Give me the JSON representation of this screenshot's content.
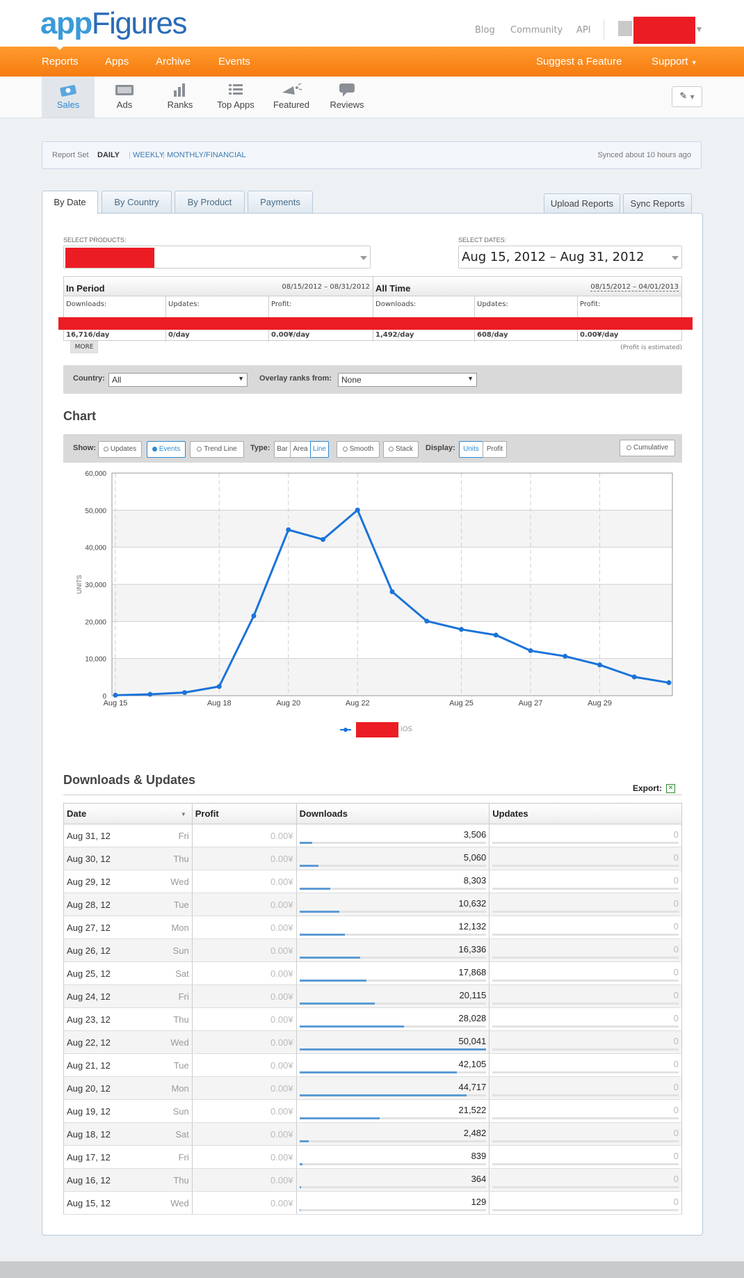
{
  "brand": {
    "logo_part1": "app",
    "logo_part2": "Figures"
  },
  "top_links": {
    "blog": "Blog",
    "community": "Community",
    "api": "API"
  },
  "main_nav": {
    "reports": "Reports",
    "apps": "Apps",
    "archive": "Archive",
    "events": "Events",
    "suggest": "Suggest a Feature",
    "support": "Support"
  },
  "sub_nav": {
    "sales": "Sales",
    "ads": "Ads",
    "ranks": "Ranks",
    "top_apps": "Top Apps",
    "featured": "Featured",
    "reviews": "Reviews"
  },
  "report_set": {
    "label": "Report Set",
    "daily": "DAILY",
    "weekly": "WEEKLY",
    "monthly": "MONTHLY/FINANCIAL",
    "synced": "Synced about 10 hours ago"
  },
  "tabs": {
    "by_date": "By Date",
    "by_country": "By Country",
    "by_product": "By Product",
    "payments": "Payments",
    "upload": "Upload Reports",
    "sync": "Sync Reports"
  },
  "selectors": {
    "products_label": "SELECT PRODUCTS:",
    "dates_label": "SELECT DATES:",
    "dates_value": "Aug 15, 2012 – Aug 31, 2012"
  },
  "stats": {
    "in_period": {
      "title": "In Period",
      "range": "08/15/2012 – 08/31/2012",
      "downloads_label": "Downloads:",
      "updates_label": "Updates:",
      "profit_label": "Profit:",
      "downloads_rate": "16,716/day",
      "updates_rate": "0/day",
      "profit_rate": "0.00¥/day"
    },
    "all_time": {
      "title": "All Time",
      "range": "08/15/2012 – 04/01/2013",
      "downloads_label": "Downloads:",
      "updates_label": "Updates:",
      "profit_label": "Profit:",
      "downloads_rate": "1,492/day",
      "updates_rate": "608/day",
      "profit_rate": "0.00¥/day"
    },
    "more": "MORE",
    "profit_note": "(Profit is estimated)"
  },
  "filters": {
    "country_label": "Country:",
    "country_value": "All",
    "overlay_label": "Overlay ranks from:",
    "overlay_value": "None"
  },
  "chart_section": {
    "title": "Chart",
    "show_label": "Show:",
    "updates": "Updates",
    "events": "Events",
    "trend_line": "Trend Line",
    "type_label": "Type:",
    "bar": "Bar",
    "area": "Area",
    "line": "Line",
    "smooth": "Smooth",
    "stack": "Stack",
    "display_label": "Display:",
    "units": "Units",
    "profit": "Profit",
    "cumulative": "Cumulative"
  },
  "chart_data": {
    "type": "line",
    "ylabel": "UNITS",
    "ylim": [
      0,
      60000
    ],
    "yticks": [
      "0",
      "10,000",
      "20,000",
      "30,000",
      "40,000",
      "50,000",
      "60,000"
    ],
    "xticks": [
      {
        "label": "Aug 15",
        "day": 15
      },
      {
        "label": "Aug 18",
        "day": 18
      },
      {
        "label": "Aug 20",
        "day": 20
      },
      {
        "label": "Aug 22",
        "day": 22
      },
      {
        "label": "Aug 25",
        "day": 25
      },
      {
        "label": "Aug 27",
        "day": 27
      },
      {
        "label": "Aug 29",
        "day": 29
      }
    ],
    "days": [
      15,
      16,
      17,
      18,
      19,
      20,
      21,
      22,
      23,
      24,
      25,
      26,
      27,
      28,
      29,
      30,
      31
    ],
    "values": [
      129,
      364,
      839,
      2482,
      21522,
      44717,
      42105,
      50041,
      28028,
      20115,
      17868,
      16336,
      12132,
      10632,
      8303,
      5060,
      3506
    ],
    "legend_suffix": "iOS",
    "line_color": "#1a73d9"
  },
  "downloads_section": {
    "title": "Downloads & Updates",
    "export": "Export:",
    "headers": {
      "date": "Date",
      "profit": "Profit",
      "downloads": "Downloads",
      "updates": "Updates"
    },
    "max_downloads": 50041,
    "rows": [
      {
        "date": "Aug 31, 12",
        "dow": "Fri",
        "profit": "0.00¥",
        "downloads": "3,506",
        "dl": 3506,
        "updates": "0"
      },
      {
        "date": "Aug 30, 12",
        "dow": "Thu",
        "profit": "0.00¥",
        "downloads": "5,060",
        "dl": 5060,
        "updates": "0"
      },
      {
        "date": "Aug 29, 12",
        "dow": "Wed",
        "profit": "0.00¥",
        "downloads": "8,303",
        "dl": 8303,
        "updates": "0"
      },
      {
        "date": "Aug 28, 12",
        "dow": "Tue",
        "profit": "0.00¥",
        "downloads": "10,632",
        "dl": 10632,
        "updates": "0"
      },
      {
        "date": "Aug 27, 12",
        "dow": "Mon",
        "profit": "0.00¥",
        "downloads": "12,132",
        "dl": 12132,
        "updates": "0"
      },
      {
        "date": "Aug 26, 12",
        "dow": "Sun",
        "profit": "0.00¥",
        "downloads": "16,336",
        "dl": 16336,
        "updates": "0"
      },
      {
        "date": "Aug 25, 12",
        "dow": "Sat",
        "profit": "0.00¥",
        "downloads": "17,868",
        "dl": 17868,
        "updates": "0"
      },
      {
        "date": "Aug 24, 12",
        "dow": "Fri",
        "profit": "0.00¥",
        "downloads": "20,115",
        "dl": 20115,
        "updates": "0"
      },
      {
        "date": "Aug 23, 12",
        "dow": "Thu",
        "profit": "0.00¥",
        "downloads": "28,028",
        "dl": 28028,
        "updates": "0"
      },
      {
        "date": "Aug 22, 12",
        "dow": "Wed",
        "profit": "0.00¥",
        "downloads": "50,041",
        "dl": 50041,
        "updates": "0"
      },
      {
        "date": "Aug 21, 12",
        "dow": "Tue",
        "profit": "0.00¥",
        "downloads": "42,105",
        "dl": 42105,
        "updates": "0"
      },
      {
        "date": "Aug 20, 12",
        "dow": "Mon",
        "profit": "0.00¥",
        "downloads": "44,717",
        "dl": 44717,
        "updates": "0"
      },
      {
        "date": "Aug 19, 12",
        "dow": "Sun",
        "profit": "0.00¥",
        "downloads": "21,522",
        "dl": 21522,
        "updates": "0"
      },
      {
        "date": "Aug 18, 12",
        "dow": "Sat",
        "profit": "0.00¥",
        "downloads": "2,482",
        "dl": 2482,
        "updates": "0"
      },
      {
        "date": "Aug 17, 12",
        "dow": "Fri",
        "profit": "0.00¥",
        "downloads": "839",
        "dl": 839,
        "updates": "0"
      },
      {
        "date": "Aug 16, 12",
        "dow": "Thu",
        "profit": "0.00¥",
        "downloads": "364",
        "dl": 364,
        "updates": "0"
      },
      {
        "date": "Aug 15, 12",
        "dow": "Wed",
        "profit": "0.00¥",
        "downloads": "129",
        "dl": 129,
        "updates": "0"
      }
    ]
  },
  "colors": {
    "orange": "#f67b0f",
    "accent_blue": "#2d8bd3",
    "redaction": "#ec1c24"
  },
  "icons": [
    "sales-icon",
    "ads-icon",
    "ranks-icon",
    "top-apps-icon",
    "featured-icon",
    "reviews-icon",
    "pin-icon",
    "excel-icon"
  ]
}
